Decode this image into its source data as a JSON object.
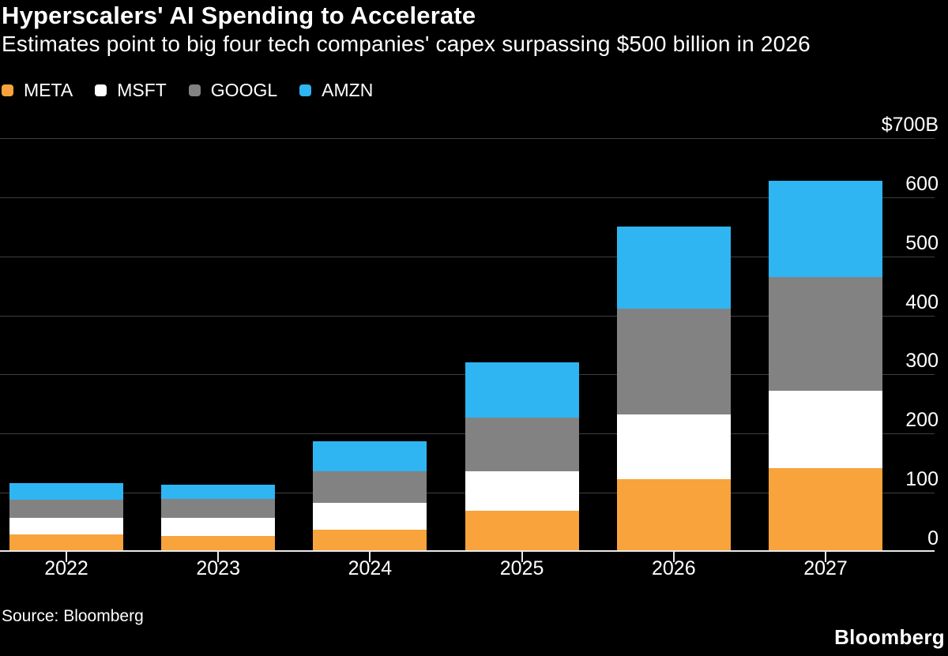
{
  "header": {
    "title": "Hyperscalers' AI Spending to Accelerate",
    "subtitle": "Estimates point to big four tech companies' capex surpassing $500 billion in 2026"
  },
  "colors": {
    "background": "#000000",
    "text": "#FFFFFF",
    "gridline": "#3F3F3F",
    "axis_line": "#E9E9E9",
    "meta_orange": "#F8A33C",
    "msft_white": "#FFFFFF",
    "googl_gray": "#828282",
    "amzn_blue": "#2FB5F1"
  },
  "chart_data": {
    "type": "bar",
    "stacked": true,
    "title": "Hyperscalers' AI Spending to Accelerate",
    "subtitle": "Estimates point to big four tech companies' capex surpassing $500 billion in 2026",
    "unit": "billions of US dollars",
    "categories": [
      "2022",
      "2023",
      "2024",
      "2025",
      "2026",
      "2027"
    ],
    "series": [
      {
        "name": "META",
        "color": "#F8A33C",
        "values": [
          30,
          27,
          38,
          69,
          123,
          142
        ]
      },
      {
        "name": "MSFT",
        "color": "#FFFFFF",
        "values": [
          27,
          31,
          45,
          67,
          109,
          131
        ]
      },
      {
        "name": "GOOGL",
        "color": "#828282",
        "values": [
          31,
          32,
          53,
          91,
          179,
          192
        ]
      },
      {
        "name": "AMZN",
        "color": "#2FB5F1",
        "values": [
          28,
          23,
          51,
          93,
          140,
          163
        ]
      }
    ],
    "totals": [
      116,
      113,
      187,
      320,
      551,
      628
    ],
    "ylim": [
      0,
      700
    ],
    "ytick_interval": 100,
    "ytick_labels": [
      "$700B",
      "600",
      "500",
      "400",
      "300",
      "200",
      "100",
      "0"
    ],
    "grid": true,
    "legend_position": "top-left",
    "xlabel": "",
    "ylabel": ""
  },
  "footer": {
    "source": "Source: Bloomberg",
    "logo": "Bloomberg"
  }
}
